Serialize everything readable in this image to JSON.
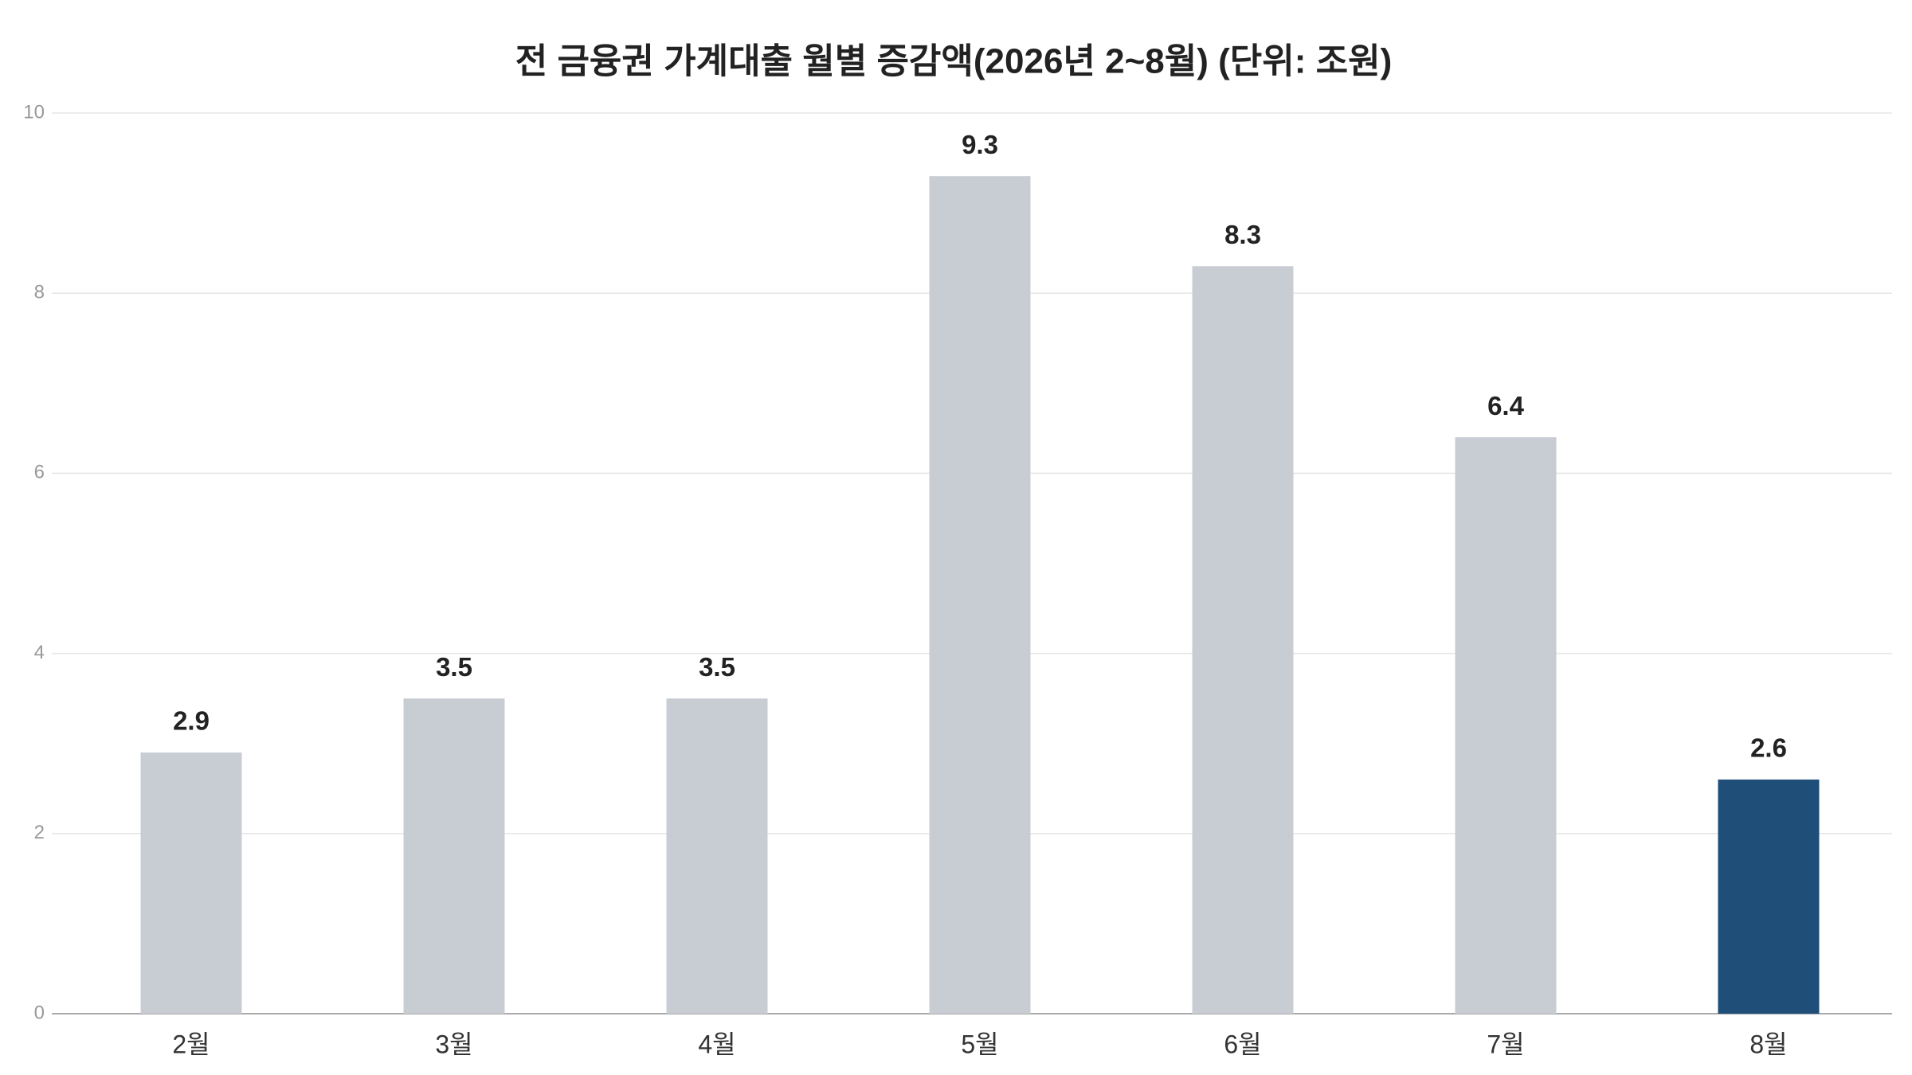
{
  "chart_data": {
    "type": "bar",
    "title": "전 금융권 가계대출 월별 증감액(2026년 2~8월) (단위: 조원)",
    "categories": [
      "2월",
      "3월",
      "4월",
      "5월",
      "6월",
      "7월",
      "8월"
    ],
    "values": [
      2.9,
      3.5,
      3.5,
      9.3,
      8.3,
      6.4,
      2.6
    ],
    "colors": [
      "#c8cdd4",
      "#c8cdd4",
      "#c8cdd4",
      "#c8cdd4",
      "#c8cdd4",
      "#c8cdd4",
      "#1f4e79"
    ],
    "ylim": [
      0,
      10
    ],
    "yticks": [
      0,
      2,
      4,
      6,
      8,
      10
    ],
    "grid": true
  }
}
